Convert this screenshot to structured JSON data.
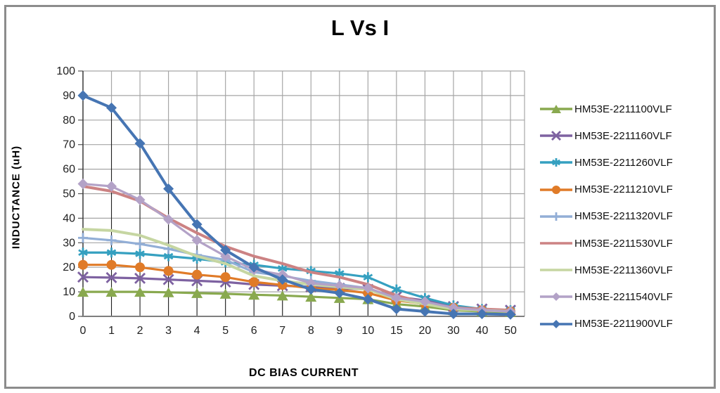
{
  "window": {
    "background": "#ffffff",
    "frame_color": "#8c8c8c"
  },
  "chart_data": {
    "type": "line",
    "title": "L Vs I",
    "xlabel": "DC BIAS CURRENT",
    "ylabel": "INDUCTANCE (uH)",
    "categories": [
      "0",
      "1",
      "2",
      "3",
      "4",
      "5",
      "6",
      "7",
      "8",
      "9",
      "10",
      "15",
      "20",
      "30",
      "40",
      "50"
    ],
    "ylim": [
      0,
      100
    ],
    "ytick_step": 10,
    "ytick_labels": [
      "0",
      "10",
      "20",
      "30",
      "40",
      "50",
      "60",
      "70",
      "80",
      "90",
      "100"
    ],
    "grid": "both",
    "drop_lines": true,
    "legend_position": "right",
    "gridline_color": "#a6a6a6",
    "axis_color": "#7f7f7f",
    "drop_line_color": "#1a1a1a",
    "tick_label_color": "#1f1f1f",
    "series": [
      {
        "name": "HM53E-2211100VLF",
        "color": "#89A94F",
        "marker": "triangle",
        "values": [
          10,
          10,
          10,
          9.8,
          9.5,
          9.2,
          8.8,
          8.5,
          8,
          7.5,
          7,
          5,
          4,
          2.5,
          2,
          1.8
        ]
      },
      {
        "name": "HM53E-2211160VLF",
        "color": "#7E62A1",
        "marker": "x",
        "values": [
          16,
          15.8,
          15.5,
          15,
          14.5,
          14,
          13,
          12.5,
          12,
          11.5,
          11,
          8,
          6.5,
          4,
          3,
          2.5
        ]
      },
      {
        "name": "HM53E-2211260VLF",
        "color": "#35A0C0",
        "marker": "asterisk",
        "values": [
          26,
          26,
          25.5,
          24.5,
          23.5,
          22,
          21,
          19.5,
          18.5,
          17.5,
          16,
          11,
          7.5,
          4.5,
          3,
          2.5
        ]
      },
      {
        "name": "HM53E-2211210VLF",
        "color": "#E07B28",
        "marker": "circle",
        "values": [
          21,
          21,
          20,
          18.5,
          17,
          16,
          14,
          12.8,
          11.5,
          10.8,
          9.5,
          6.5,
          5,
          3.5,
          2.5,
          2
        ]
      },
      {
        "name": "HM53E-2211320VLF",
        "color": "#92AED6",
        "marker": "plus",
        "values": [
          32,
          31,
          29.5,
          27.5,
          25,
          23,
          18,
          16.5,
          14.5,
          13,
          11.5,
          7,
          5.5,
          3.5,
          2.5,
          2
        ]
      },
      {
        "name": "HM53E-2211530VLF",
        "color": "#CC8283",
        "marker": "none",
        "values": [
          53,
          51,
          47,
          40,
          34,
          28.5,
          24.5,
          21.5,
          18,
          16,
          13,
          8.5,
          5.5,
          3.5,
          3,
          2.5
        ]
      },
      {
        "name": "HM53E-2211360VLF",
        "color": "#C6D6A2",
        "marker": "none",
        "values": [
          35.5,
          35,
          33,
          29,
          24.5,
          21.5,
          16.5,
          14.5,
          13,
          12,
          11,
          7,
          5,
          3,
          2.5,
          2
        ]
      },
      {
        "name": "HM53E-2211540VLF",
        "color": "#B3A2C7",
        "marker": "diamond",
        "values": [
          54,
          53,
          47.5,
          39.5,
          31,
          24.5,
          19,
          17,
          13.5,
          12.5,
          11.5,
          7.5,
          6,
          3.5,
          2.5,
          2
        ]
      },
      {
        "name": "HM53E-2211900VLF",
        "color": "#4675B3",
        "marker": "diamond",
        "values": [
          90,
          85,
          70.5,
          52,
          37.5,
          27,
          20,
          15,
          11,
          9.5,
          7,
          3,
          2,
          1,
          1,
          0.8
        ]
      }
    ]
  }
}
